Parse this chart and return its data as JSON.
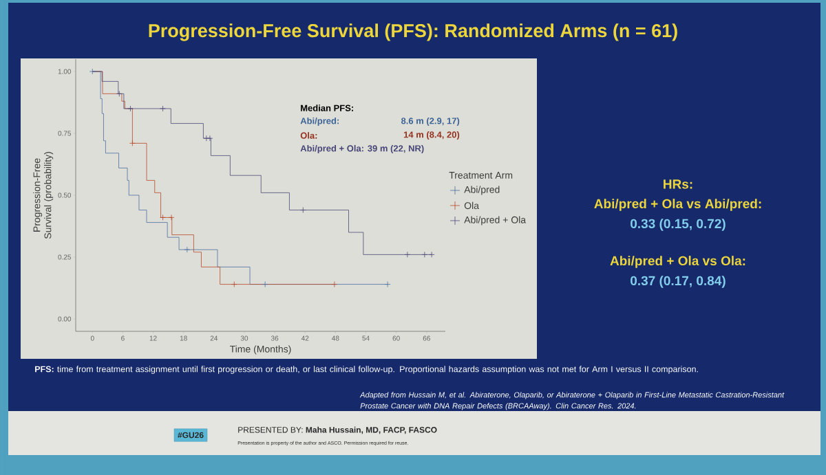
{
  "chart_data": {
    "type": "step",
    "title": "Progression-Free Survival (PFS): Randomized Arms (n = 61)",
    "xlabel": "Time (Months)",
    "ylabel": "Progression-Free Survival (probability)",
    "legend_title": "Treatment Arm",
    "legend": "right",
    "xlim": [
      -3.3,
      69.7
    ],
    "ylim": [
      -0.05,
      1.05
    ],
    "xticks": [
      0,
      6,
      12,
      18,
      24,
      30,
      36,
      42,
      48,
      54,
      60,
      66
    ],
    "yticks": [
      {
        "value": 0,
        "label": "0.00"
      },
      {
        "value": 0.25,
        "label": "0.25"
      },
      {
        "value": 0.5,
        "label": "0.50"
      },
      {
        "value": 0.75,
        "label": "0.75"
      },
      {
        "value": 1,
        "label": "1.00"
      }
    ],
    "series": [
      {
        "name": "Abi/pred",
        "color": "#4a6fa0",
        "x": [
          0,
          1.6,
          1.9,
          2.2,
          2.6,
          5.2,
          6.9,
          7.2,
          9.2,
          10.7,
          14.8,
          17.1,
          24.7,
          31.1,
          58.3
        ],
        "values": [
          1.0,
          0.89,
          0.83,
          0.72,
          0.67,
          0.61,
          0.56,
          0.5,
          0.44,
          0.39,
          0.33,
          0.28,
          0.21,
          0.14,
          0.14
        ]
      },
      {
        "name": "Ola",
        "color": "#b5472a",
        "x": [
          0,
          2.0,
          5.8,
          6.4,
          7.9,
          10.7,
          12.3,
          13.5,
          15.7,
          20.0,
          21.5,
          25.2,
          47.8
        ],
        "values": [
          1.0,
          0.91,
          0.88,
          0.85,
          0.71,
          0.56,
          0.51,
          0.41,
          0.34,
          0.27,
          0.21,
          0.14,
          0.14
        ]
      },
      {
        "name": "Abi/pred + Ola",
        "color": "#4a4a78",
        "x": [
          0,
          1.9,
          5.1,
          6.2,
          15.5,
          21.9,
          23.4,
          27.2,
          33.3,
          38.9,
          50.6,
          53.5,
          67.0
        ],
        "values": [
          1.0,
          0.96,
          0.91,
          0.85,
          0.79,
          0.73,
          0.66,
          0.58,
          0.51,
          0.44,
          0.35,
          0.26,
          0.26
        ]
      },
      {
        "type": "scatter",
        "marker": "cross",
        "color": "#4a6fa0",
        "x": [
          0,
          18.7,
          34.1,
          58.3
        ],
        "values": [
          1.0,
          0.28,
          0.14,
          0.14
        ]
      },
      {
        "type": "scatter",
        "marker": "cross",
        "color": "#b5472a",
        "x": [
          7.9,
          13.9,
          15.6,
          28.0,
          47.8
        ],
        "values": [
          0.71,
          0.41,
          0.41,
          0.14,
          0.14
        ]
      },
      {
        "type": "scatter",
        "marker": "cross",
        "color": "#4a4a78",
        "x": [
          5.3,
          7.5,
          13.9,
          22.5,
          23.2,
          41.6,
          62.2,
          65.6,
          67.0
        ],
        "values": [
          0.91,
          0.85,
          0.85,
          0.73,
          0.73,
          0.44,
          0.26,
          0.26,
          0.26
        ]
      }
    ],
    "annotations": [
      "Median PFS:",
      "Abi/pred:",
      "8.6 m (2.9, 17)",
      "Ola:",
      "14 m (8.4, 20)",
      "Abi/pred + Ola: 39 m (22, NR)",
      "HRs:",
      "Abi/pred + Ola vs Abi/pred:",
      "0.33 (0.15, 0.72)",
      "Abi/pred + Ola vs Ola:",
      "0.37 (0.17, 0.84)",
      "**PFS:** time from treatment assignment until first progression or death, or last clinical follow-up. Proportional hazards assumption was not met for Arm I versus II comparison.",
      "Adapted from Hussain M, et al. Abiraterone, Olaparib, or Abiraterone + Olaparib in First-Line Metastatic Castration-Resistant Prostate Cancer with DNA Repair Defects (BRCAAway). Clin Cancer Res. 2024.",
      "#GU26",
      "PRESENTED BY: **Maha Hussain, MD, FACP, FASCO**",
      "Presentation is property of the author and ASCO. Permission required for reuse."
    ]
  }
}
